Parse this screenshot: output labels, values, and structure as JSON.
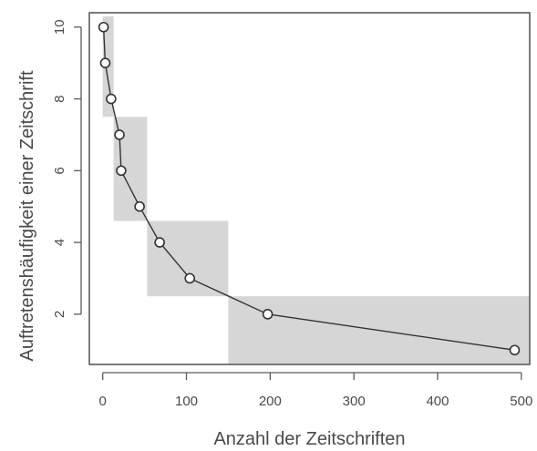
{
  "chart_data": {
    "type": "scatter",
    "xlabel": "Anzahl der Zeitschriften",
    "ylabel": "Auftretenshäufigkeit einer Zeitschrift",
    "xlim": [
      -16,
      510
    ],
    "ylim": [
      0.6,
      10.4
    ],
    "xticks": [
      0,
      100,
      200,
      300,
      400,
      500
    ],
    "yticks": [
      2,
      4,
      6,
      8,
      10
    ],
    "xtick_labels": [
      "0",
      "100",
      "200",
      "300",
      "400",
      "500"
    ],
    "ytick_labels": [
      "2",
      "4",
      "6",
      "8",
      "10"
    ],
    "grid": false,
    "series": [
      {
        "x": [
          1,
          3,
          10,
          20,
          22,
          44,
          68,
          104,
          197,
          492
        ],
        "y": [
          10,
          9,
          8,
          7,
          6,
          5,
          4,
          3,
          2,
          1
        ],
        "line": true,
        "marker": "open-circle"
      }
    ],
    "shaded_regions": [
      {
        "x": [
          0,
          13
        ],
        "y": [
          7.5,
          10.3
        ]
      },
      {
        "x": [
          13,
          53
        ],
        "y": [
          4.6,
          7.5
        ]
      },
      {
        "x": [
          53,
          150
        ],
        "y": [
          2.5,
          4.6
        ]
      },
      {
        "x": [
          150,
          512
        ],
        "y": [
          0.6,
          2.5
        ]
      }
    ],
    "colors": {
      "shade": "#d6d6d6",
      "line": "#333333",
      "marker_fill": "#ffffff",
      "axis": "#5a5a5a",
      "text": "#4a4a4a"
    }
  }
}
